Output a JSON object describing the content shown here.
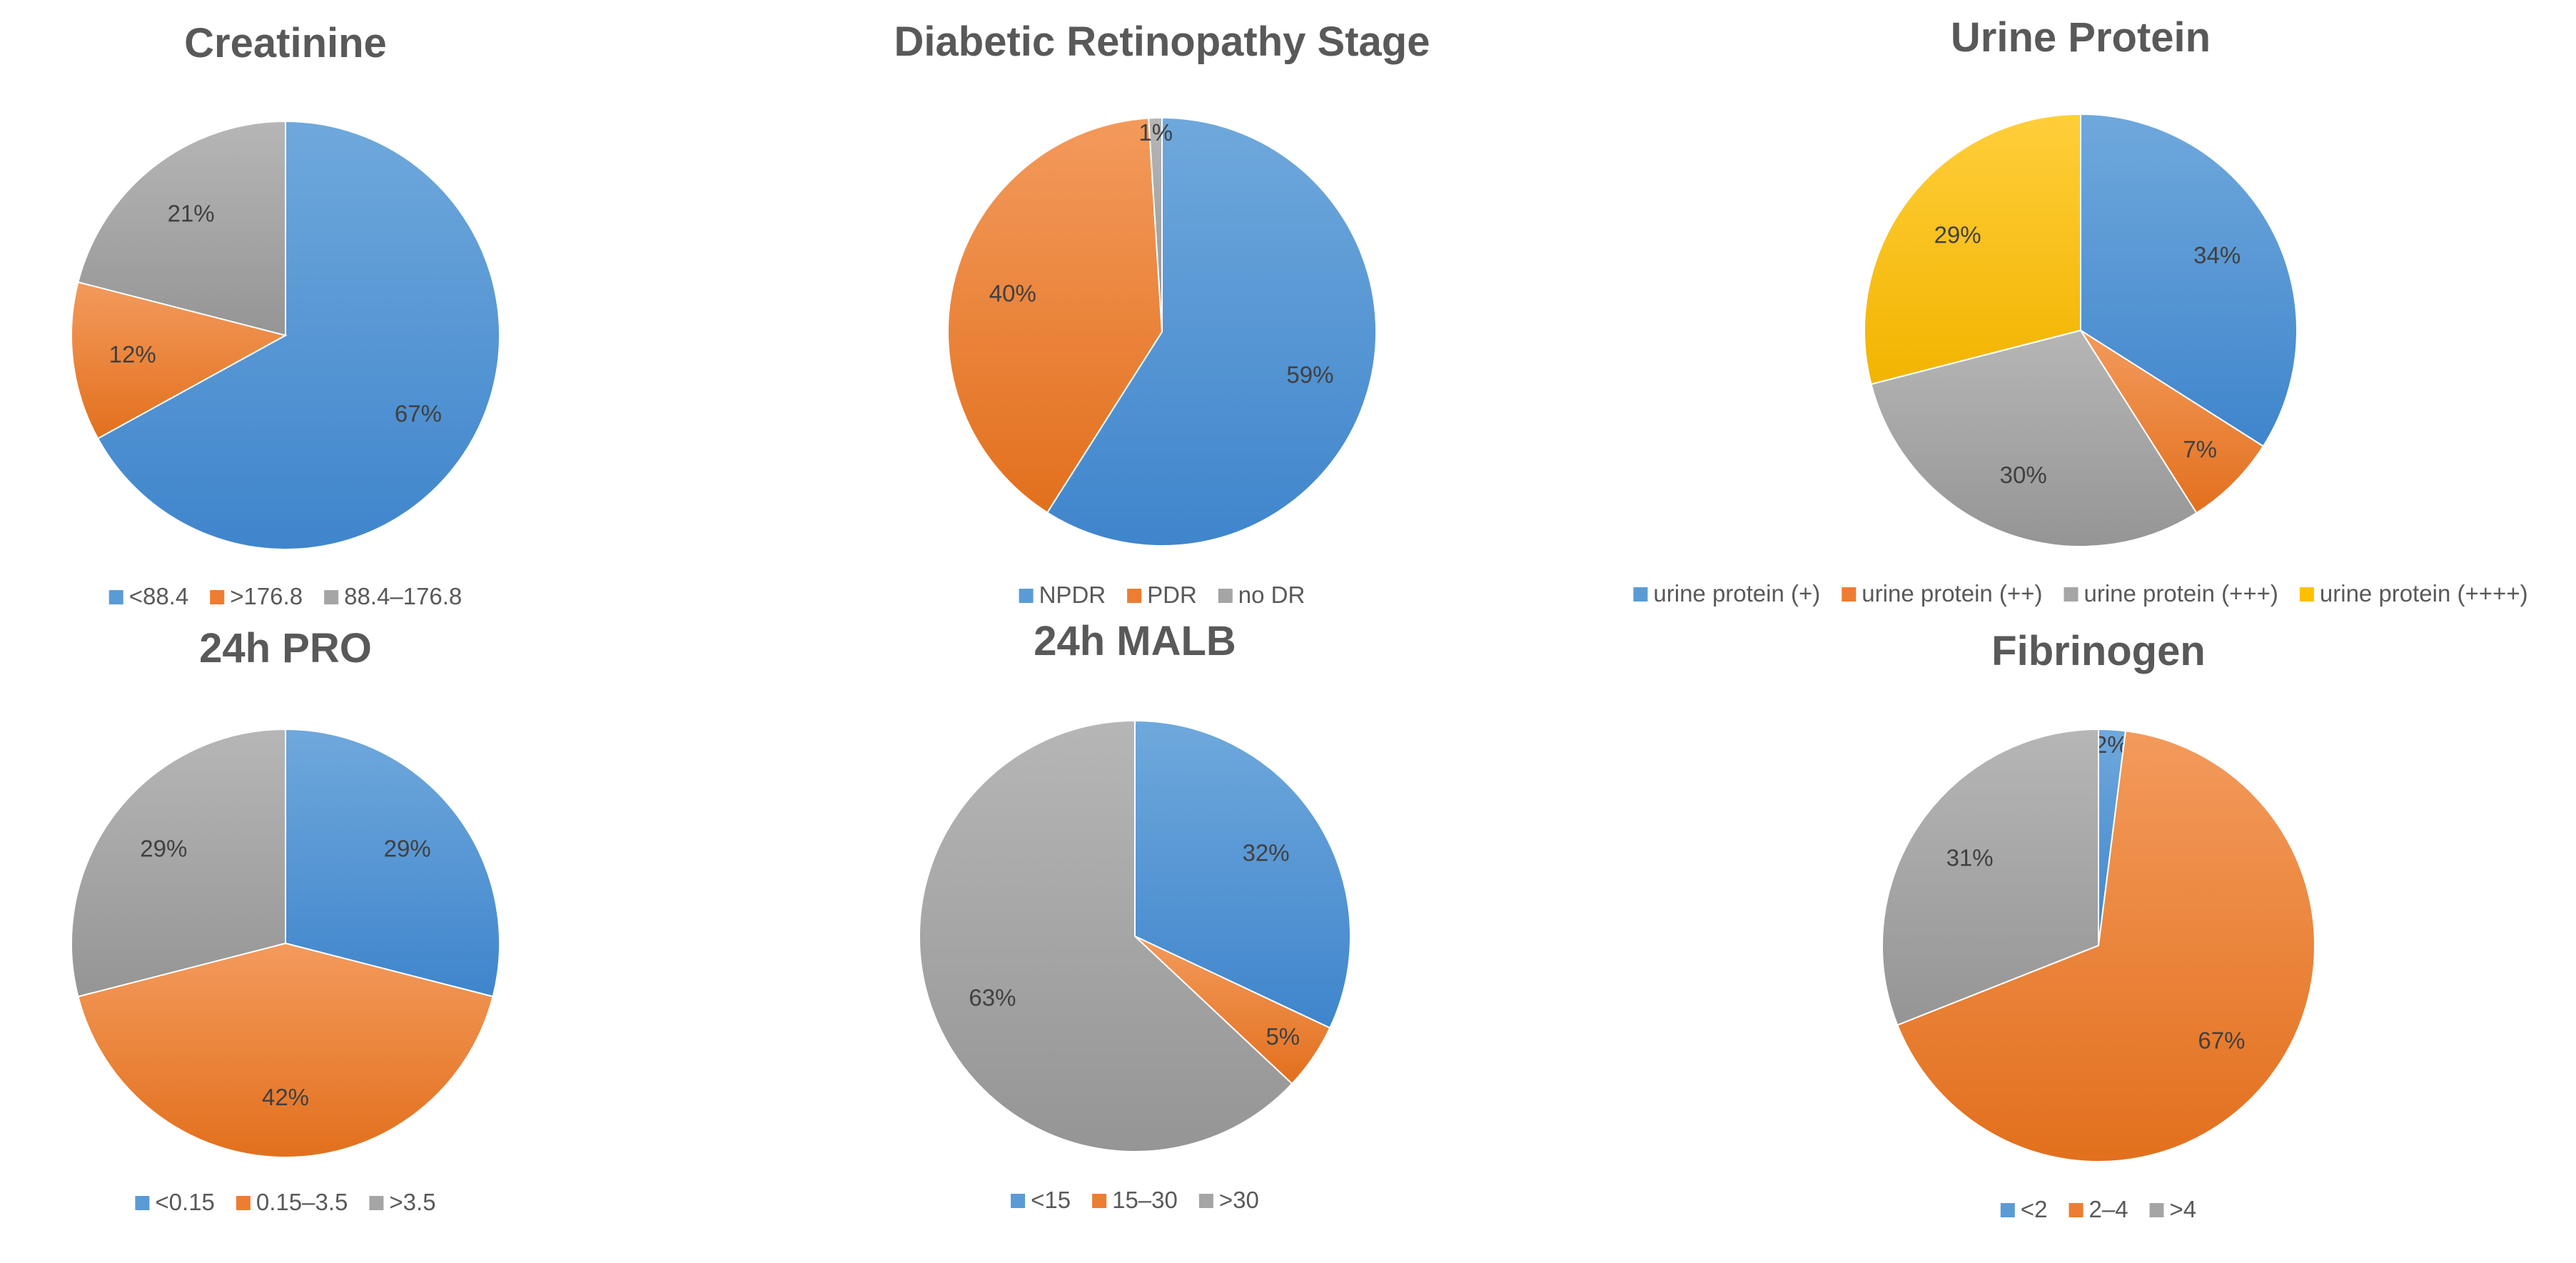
{
  "colors": {
    "blue": "#5B9BD5",
    "orange": "#ED7D31",
    "gray": "#A5A5A5",
    "yellow": "#FFC000",
    "label": "#404040",
    "title": "#595959"
  },
  "chart_data": [
    {
      "type": "pie",
      "title": "Creatinine",
      "categories": [
        "<88.4",
        ">176.8",
        "88.4–176.8"
      ],
      "values": [
        67,
        12,
        21
      ],
      "labels": [
        "67%",
        "12%",
        "21%"
      ],
      "colors": [
        "#5B9BD5",
        "#ED7D31",
        "#A5A5A5"
      ],
      "legend": "bottom"
    },
    {
      "type": "pie",
      "title": "Diabetic Retinopathy Stage",
      "categories": [
        "NPDR",
        "PDR",
        "no DR"
      ],
      "values": [
        59,
        40,
        1
      ],
      "labels": [
        "59%",
        "40%",
        "1%"
      ],
      "colors": [
        "#5B9BD5",
        "#ED7D31",
        "#A5A5A5"
      ],
      "legend": "bottom"
    },
    {
      "type": "pie",
      "title": "Urine Protein",
      "categories": [
        "urine protein (+)",
        "urine protein (++)",
        "urine protein (+++)",
        "urine protein (++++)"
      ],
      "values": [
        34,
        7,
        30,
        29
      ],
      "labels": [
        "34%",
        "7%",
        "30%",
        "29%"
      ],
      "colors": [
        "#5B9BD5",
        "#ED7D31",
        "#A5A5A5",
        "#FFC000"
      ],
      "legend": "bottom"
    },
    {
      "type": "pie",
      "title": "24h PRO",
      "categories": [
        "<0.15",
        "0.15–3.5",
        ">3.5"
      ],
      "values": [
        29,
        42,
        29
      ],
      "labels": [
        "29%",
        "42%",
        "29%"
      ],
      "colors": [
        "#5B9BD5",
        "#ED7D31",
        "#A5A5A5"
      ],
      "legend": "bottom"
    },
    {
      "type": "pie",
      "title": "24h MALB",
      "categories": [
        "<15",
        "15–30",
        ">30"
      ],
      "values": [
        32,
        5,
        63
      ],
      "labels": [
        "32%",
        "5%",
        "63%"
      ],
      "colors": [
        "#5B9BD5",
        "#ED7D31",
        "#A5A5A5"
      ],
      "legend": "bottom"
    },
    {
      "type": "pie",
      "title": "Fibrinogen",
      "categories": [
        "<2",
        "2–4",
        ">4"
      ],
      "values": [
        2,
        67,
        31
      ],
      "labels": [
        "2%",
        "67%",
        "31%"
      ],
      "colors": [
        "#5B9BD5",
        "#ED7D31",
        "#A5A5A5"
      ],
      "legend": "bottom"
    }
  ]
}
